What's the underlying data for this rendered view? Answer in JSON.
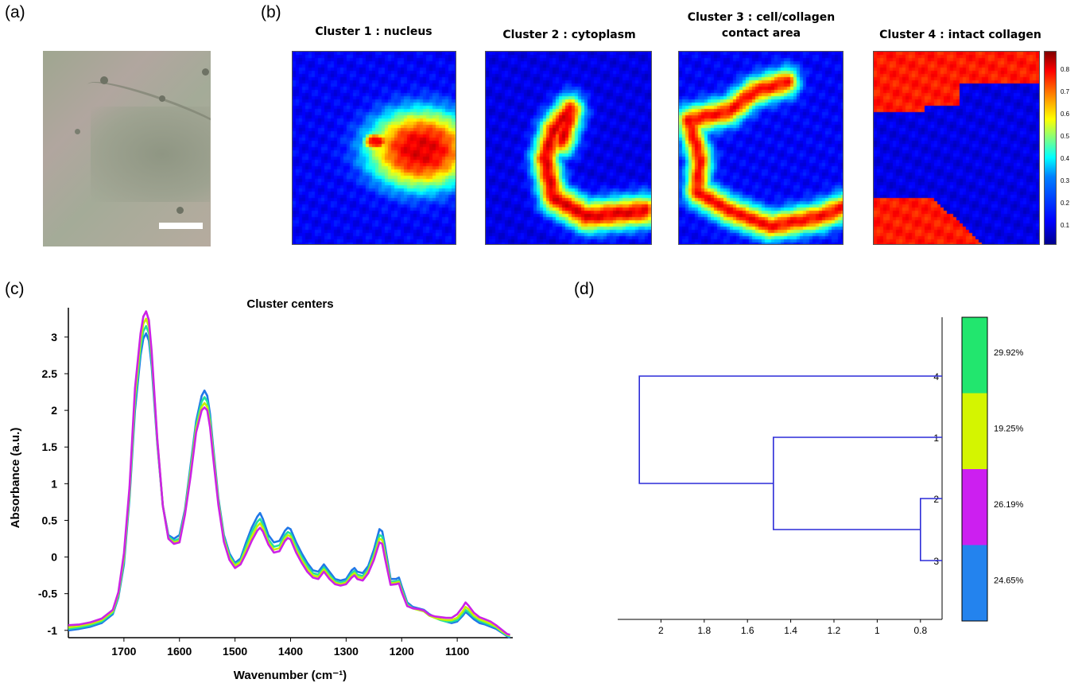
{
  "panel_labels": [
    "(a)",
    "(b)",
    "(c)",
    "(d)"
  ],
  "heatmaps": {
    "titles": [
      "Cluster 1 : nucleus",
      "Cluster 2 : cytoplasm",
      "Cluster 3 : cell/collagen contact area",
      "Cluster 4 : intact collagen"
    ],
    "colorbar_ticks": [
      "0.8",
      "0.7",
      "0.6",
      "0.5",
      "0.4",
      "0.3",
      "0.2",
      "0.1"
    ]
  },
  "chart_data": [
    {
      "type": "line",
      "title": "Cluster centers",
      "xlabel": "Wavenumber (cm⁻¹)",
      "ylabel": "Absorbance (a.u.)",
      "xlim": [
        1800,
        1000
      ],
      "ylim": [
        -1.1,
        3.4
      ],
      "x_reversed": true,
      "x_ticks": [
        "1700",
        "1600",
        "1500",
        "1400",
        "1300",
        "1200",
        "1100"
      ],
      "y_ticks": [
        "3",
        "2.5",
        "2",
        "1.5",
        "1",
        "0.5",
        "0",
        "-0.5",
        "-1"
      ],
      "x": [
        1800,
        1780,
        1760,
        1740,
        1720,
        1710,
        1700,
        1690,
        1680,
        1670,
        1665,
        1660,
        1655,
        1650,
        1640,
        1630,
        1620,
        1610,
        1600,
        1590,
        1580,
        1570,
        1560,
        1555,
        1550,
        1545,
        1540,
        1530,
        1520,
        1510,
        1500,
        1490,
        1480,
        1470,
        1460,
        1455,
        1450,
        1440,
        1430,
        1420,
        1410,
        1405,
        1400,
        1390,
        1380,
        1370,
        1360,
        1350,
        1340,
        1330,
        1320,
        1310,
        1300,
        1290,
        1285,
        1280,
        1270,
        1260,
        1250,
        1240,
        1235,
        1230,
        1220,
        1210,
        1205,
        1200,
        1190,
        1180,
        1170,
        1160,
        1150,
        1140,
        1130,
        1120,
        1110,
        1100,
        1090,
        1085,
        1080,
        1070,
        1060,
        1050,
        1040,
        1030,
        1020,
        1010,
        1005
      ],
      "series": [
        {
          "color": "#1f77e8",
          "values": [
            -1.0,
            -0.98,
            -0.95,
            -0.9,
            -0.78,
            -0.55,
            -0.1,
            0.8,
            2.0,
            2.75,
            2.98,
            3.05,
            2.95,
            2.6,
            1.55,
            0.7,
            0.3,
            0.25,
            0.3,
            0.65,
            1.25,
            1.85,
            2.2,
            2.27,
            2.2,
            1.95,
            1.55,
            0.8,
            0.3,
            0.05,
            -0.08,
            -0.02,
            0.2,
            0.4,
            0.55,
            0.6,
            0.52,
            0.3,
            0.2,
            0.22,
            0.36,
            0.4,
            0.38,
            0.2,
            0.05,
            -0.08,
            -0.18,
            -0.2,
            -0.1,
            -0.2,
            -0.3,
            -0.32,
            -0.3,
            -0.18,
            -0.15,
            -0.2,
            -0.22,
            -0.12,
            0.1,
            0.38,
            0.35,
            0.15,
            -0.3,
            -0.3,
            -0.28,
            -0.4,
            -0.62,
            -0.68,
            -0.7,
            -0.72,
            -0.78,
            -0.82,
            -0.85,
            -0.88,
            -0.9,
            -0.88,
            -0.8,
            -0.75,
            -0.78,
            -0.85,
            -0.9,
            -0.92,
            -0.95,
            -0.98,
            -1.03,
            -1.08,
            -1.1
          ]
        },
        {
          "color": "#22e0a0",
          "values": [
            -0.98,
            -0.96,
            -0.93,
            -0.88,
            -0.76,
            -0.53,
            -0.05,
            0.85,
            2.1,
            2.85,
            3.08,
            3.15,
            3.05,
            2.68,
            1.58,
            0.7,
            0.28,
            0.22,
            0.25,
            0.62,
            1.2,
            1.8,
            2.12,
            2.18,
            2.12,
            1.88,
            1.5,
            0.77,
            0.27,
            0.02,
            -0.1,
            -0.05,
            0.15,
            0.34,
            0.48,
            0.52,
            0.45,
            0.24,
            0.14,
            0.16,
            0.3,
            0.34,
            0.32,
            0.15,
            0.0,
            -0.12,
            -0.22,
            -0.24,
            -0.14,
            -0.24,
            -0.33,
            -0.35,
            -0.33,
            -0.22,
            -0.19,
            -0.24,
            -0.26,
            -0.16,
            0.04,
            0.3,
            0.28,
            0.08,
            -0.34,
            -0.33,
            -0.32,
            -0.44,
            -0.64,
            -0.7,
            -0.72,
            -0.74,
            -0.8,
            -0.83,
            -0.86,
            -0.88,
            -0.88,
            -0.86,
            -0.77,
            -0.72,
            -0.75,
            -0.82,
            -0.87,
            -0.9,
            -0.93,
            -0.96,
            -1.02,
            -1.07,
            -1.08
          ]
        },
        {
          "color": "#c6f000",
          "values": [
            -0.96,
            -0.94,
            -0.91,
            -0.86,
            -0.74,
            -0.5,
            0.0,
            0.9,
            2.2,
            2.95,
            3.18,
            3.25,
            3.14,
            2.75,
            1.6,
            0.7,
            0.26,
            0.2,
            0.22,
            0.6,
            1.15,
            1.75,
            2.05,
            2.1,
            2.05,
            1.82,
            1.45,
            0.74,
            0.24,
            -0.01,
            -0.12,
            -0.07,
            0.1,
            0.28,
            0.42,
            0.46,
            0.4,
            0.2,
            0.1,
            0.12,
            0.26,
            0.3,
            0.28,
            0.1,
            -0.04,
            -0.16,
            -0.25,
            -0.27,
            -0.17,
            -0.27,
            -0.35,
            -0.37,
            -0.35,
            -0.25,
            -0.22,
            -0.27,
            -0.29,
            -0.19,
            0.0,
            0.25,
            0.23,
            0.03,
            -0.36,
            -0.35,
            -0.34,
            -0.46,
            -0.66,
            -0.7,
            -0.72,
            -0.74,
            -0.8,
            -0.83,
            -0.85,
            -0.86,
            -0.86,
            -0.83,
            -0.74,
            -0.68,
            -0.71,
            -0.8,
            -0.85,
            -0.88,
            -0.91,
            -0.95,
            -1.01,
            -1.06,
            -1.07
          ]
        },
        {
          "color": "#cc22e6",
          "values": [
            -0.93,
            -0.92,
            -0.89,
            -0.84,
            -0.72,
            -0.48,
            0.05,
            0.95,
            2.3,
            3.05,
            3.28,
            3.35,
            3.23,
            2.8,
            1.62,
            0.7,
            0.25,
            0.18,
            0.2,
            0.58,
            1.1,
            1.7,
            2.0,
            2.04,
            2.0,
            1.77,
            1.4,
            0.71,
            0.21,
            -0.04,
            -0.15,
            -0.1,
            0.05,
            0.22,
            0.36,
            0.4,
            0.35,
            0.17,
            0.06,
            0.08,
            0.22,
            0.26,
            0.24,
            0.06,
            -0.08,
            -0.2,
            -0.28,
            -0.3,
            -0.2,
            -0.3,
            -0.37,
            -0.39,
            -0.37,
            -0.28,
            -0.25,
            -0.3,
            -0.32,
            -0.22,
            -0.04,
            0.2,
            0.18,
            -0.02,
            -0.38,
            -0.37,
            -0.36,
            -0.48,
            -0.67,
            -0.7,
            -0.71,
            -0.73,
            -0.79,
            -0.81,
            -0.82,
            -0.83,
            -0.83,
            -0.78,
            -0.68,
            -0.62,
            -0.66,
            -0.76,
            -0.82,
            -0.85,
            -0.88,
            -0.93,
            -0.99,
            -1.05,
            -1.06
          ]
        }
      ]
    },
    {
      "type": "dendrogram",
      "x_ticks": [
        "2",
        "1.8",
        "1.6",
        "1.4",
        "1.2",
        "1",
        "0.8"
      ],
      "xlim": [
        2.2,
        0.7
      ],
      "leaves": [
        "4",
        "1",
        "2",
        "3"
      ],
      "merges": [
        {
          "left": "2",
          "right": "3",
          "height": 0.8
        },
        {
          "left": "1",
          "right": "2+3",
          "height": 1.48
        },
        {
          "left": "4",
          "right": "1+2+3",
          "height": 2.1
        }
      ],
      "colorbar": [
        {
          "label": "29.92%",
          "color": "#22e66e"
        },
        {
          "label": "19.25%",
          "color": "#d4f500"
        },
        {
          "label": "26.19%",
          "color": "#cc1ff0"
        },
        {
          "label": "24.65%",
          "color": "#2383ee"
        }
      ]
    }
  ]
}
